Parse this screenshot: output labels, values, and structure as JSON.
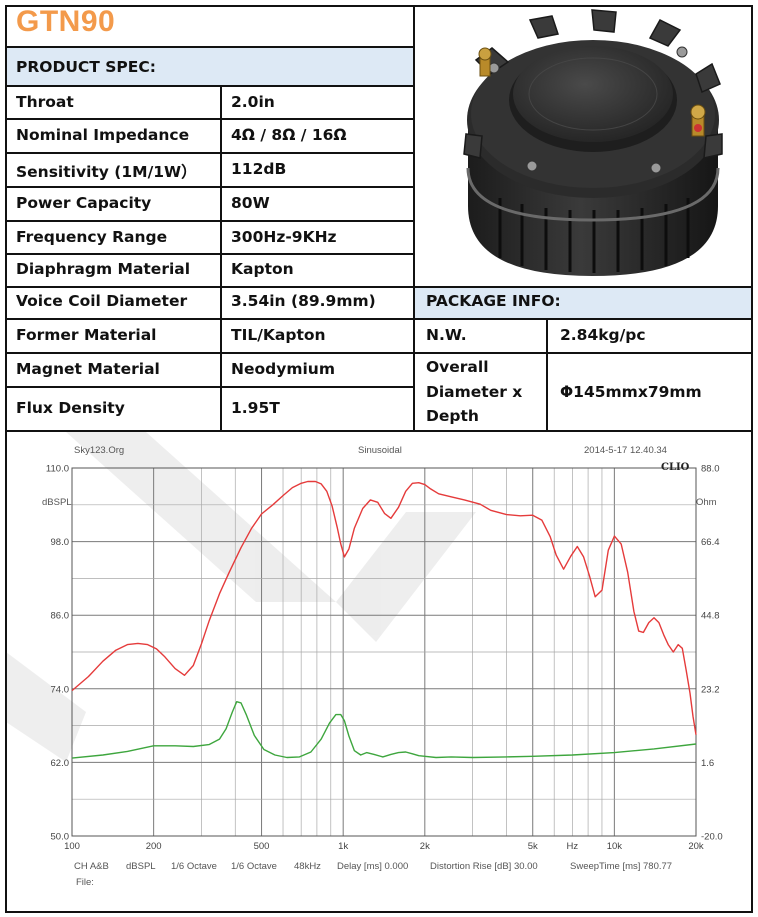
{
  "title": "GTN90",
  "product_spec_header": "PRODUCT SPEC:",
  "package_info_header": "PACKAGE INFO:",
  "specs": [
    {
      "label": "Throat",
      "value": "2.0in"
    },
    {
      "label": "Nominal Impedance",
      "value": "4Ω / 8Ω / 16Ω"
    },
    {
      "label": "Sensitivity (1M/1W）",
      "value": "112dB"
    },
    {
      "label": "Power Capacity",
      "value": "80W"
    },
    {
      "label": "Frequency Range",
      "value": "300Hz-9KHz"
    },
    {
      "label": "Diaphragm Material",
      "value": "Kapton"
    },
    {
      "label": "Voice Coil Diameter",
      "value": "3.54in (89.9mm)"
    },
    {
      "label": "Former Material",
      "value": "TIL/Kapton"
    },
    {
      "label": "Magnet Material",
      "value": "Neodymium"
    },
    {
      "label": "Flux Density",
      "value": "1.95T"
    }
  ],
  "package": [
    {
      "label": "N.W.",
      "value": "2.84kg/pc"
    },
    {
      "label_lines": [
        "Overall",
        "Diameter x",
        "Depth"
      ],
      "value": "Φ145mmx79mm"
    }
  ],
  "colors": {
    "title": "#f39a4b",
    "header_band": "#dde9f5",
    "spl_curve": "#e53b3b",
    "impedance_curve": "#3ea63e"
  },
  "chart_header": {
    "left": "Sky123.Org",
    "center": "Sinusoidal",
    "right": "2014-5-17 12.40.34",
    "logo": "CLIO"
  },
  "chart_footer": {
    "line1": [
      "CH A&B",
      "dBSPL",
      "1/6 Octave",
      "1/6 Octave",
      "48kHz",
      "Delay [ms] 0.000",
      "Distortion Rise [dB] 30.00",
      "SweepTime [ms] 780.77"
    ],
    "line2": "File:"
  },
  "chart_data": {
    "type": "line",
    "xscale": "log",
    "xlim": [
      100,
      20000
    ],
    "ylim": [
      50,
      110
    ],
    "ylim_right": [
      -20,
      88
    ],
    "ylabel": "dBSPL",
    "ylabel_right": "Ohm",
    "x_tick_labels": [
      {
        "v": 100,
        "t": "100"
      },
      {
        "v": 200,
        "t": "200"
      },
      {
        "v": 500,
        "t": "500"
      },
      {
        "v": 1000,
        "t": "1k"
      },
      {
        "v": 2000,
        "t": "2k"
      },
      {
        "v": 5000,
        "t": "5k"
      },
      {
        "v": 7000,
        "t": "Hz"
      },
      {
        "v": 10000,
        "t": "10k"
      },
      {
        "v": 20000,
        "t": "20k"
      }
    ],
    "y_tick_labels": [
      "110.0",
      "98.0",
      "86.0",
      "74.0",
      "62.0",
      "50.0"
    ],
    "y_right_tick_labels": [
      "88.0",
      "66.4",
      "44.8",
      "23.2",
      "1.6",
      "-20.0"
    ],
    "grid": true,
    "series": [
      {
        "x": [
          100,
          115,
          130,
          145,
          160,
          175,
          190,
          205,
          220,
          240,
          260,
          280,
          300,
          320,
          350,
          380,
          420,
          460,
          500,
          550,
          600,
          650,
          700,
          740,
          790,
          830,
          870,
          910,
          950,
          980,
          1010,
          1050,
          1100,
          1180,
          1260,
          1340,
          1420,
          1500,
          1600,
          1700,
          1800,
          1900,
          2000,
          2100,
          2250,
          2500,
          2800,
          3200,
          3500,
          4000,
          4500,
          5000,
          5400,
          5800,
          6100,
          6500,
          6900,
          7300,
          7700,
          8100,
          8500,
          9000,
          9500,
          10000,
          10600,
          11200,
          11800,
          12300,
          12800,
          13400,
          14000,
          14600,
          15200,
          15800,
          16500,
          17200,
          17800,
          18400,
          19000,
          19500,
          20000
        ],
        "y": [
          73.7,
          76,
          78.5,
          80.3,
          81.2,
          81.4,
          81.2,
          80.5,
          79.2,
          77.3,
          76.2,
          77.8,
          81.3,
          85,
          89.5,
          93,
          97,
          100.2,
          102.5,
          104,
          105.5,
          106.8,
          107.5,
          107.8,
          107.8,
          107.4,
          106.2,
          103.8,
          100.4,
          97.6,
          95.5,
          96.8,
          100.2,
          103.4,
          104.8,
          104.4,
          102.6,
          101.8,
          103.6,
          106.2,
          107.5,
          107.6,
          107.3,
          106.6,
          105.8,
          105.3,
          104.8,
          104.1,
          103.1,
          102.4,
          102.2,
          102.3,
          101.5,
          98.8,
          95.8,
          93.5,
          95.6,
          97.2,
          95.5,
          92.4,
          89,
          90.1,
          96.6,
          98.9,
          97.6,
          93,
          86.6,
          83.4,
          83.2,
          84.8,
          85.6,
          84.8,
          82.8,
          81.2,
          80,
          81.2,
          80.6,
          77,
          73.3,
          69.5,
          66.5
        ]
      },
      {
        "x": [
          100,
          130,
          160,
          200,
          240,
          280,
          320,
          350,
          370,
          390,
          405,
          420,
          440,
          470,
          510,
          560,
          620,
          690,
          760,
          830,
          890,
          940,
          980,
          1010,
          1050,
          1100,
          1160,
          1220,
          1300,
          1400,
          1500,
          1600,
          1700,
          1800,
          1900,
          2000,
          2200,
          2500,
          3000,
          4000,
          5000,
          7000,
          10000,
          14000,
          20000
        ],
        "y": [
          62.7,
          63.2,
          63.8,
          64.7,
          64.7,
          64.6,
          64.9,
          65.8,
          67.5,
          70.2,
          71.9,
          71.7,
          69.7,
          66.4,
          64.1,
          63.2,
          62.8,
          62.9,
          63.7,
          65.8,
          68.4,
          69.8,
          69.8,
          68.8,
          66.3,
          63.9,
          63.2,
          63.6,
          63.3,
          62.9,
          63.3,
          63.6,
          63.7,
          63.4,
          63.1,
          63,
          62.8,
          62.9,
          62.8,
          62.9,
          63,
          63.2,
          63.6,
          64.2,
          65
        ]
      }
    ]
  }
}
